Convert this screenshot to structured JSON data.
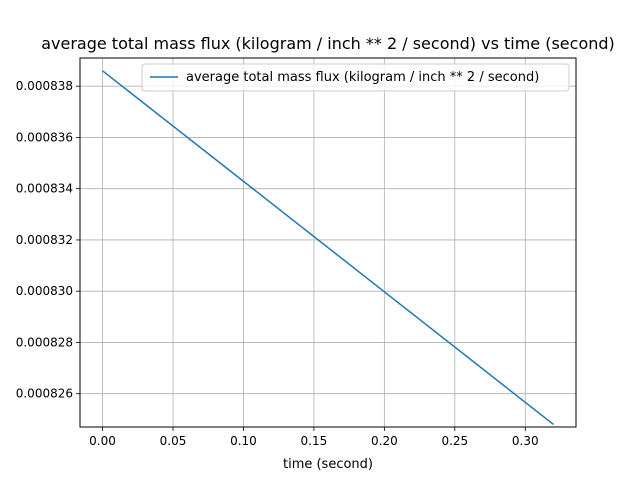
{
  "chart_data": {
    "type": "line",
    "title": "average total mass flux (kilogram / inch ** 2 / second) vs time (second)",
    "xlabel": "time (second)",
    "ylabel": "",
    "xlim": [
      -0.016,
      0.336
    ],
    "ylim": [
      0.0008247,
      0.0008391
    ],
    "x_ticks": [
      0.0,
      0.05,
      0.1,
      0.15,
      0.2,
      0.25,
      0.3
    ],
    "x_tick_labels": [
      "0.00",
      "0.05",
      "0.10",
      "0.15",
      "0.20",
      "0.25",
      "0.30"
    ],
    "y_ticks": [
      0.000826,
      0.000828,
      0.00083,
      0.000832,
      0.000834,
      0.000836,
      0.000838
    ],
    "y_tick_labels": [
      "0.000826",
      "0.000828",
      "0.000830",
      "0.000832",
      "0.000834",
      "0.000836",
      "0.000838"
    ],
    "grid": true,
    "legend_position": "top-right",
    "series": [
      {
        "name": "average total mass flux (kilogram / inch ** 2 / second)",
        "color": "#1f77b4",
        "x": [
          0.0,
          0.32
        ],
        "y": [
          0.0008386,
          0.0008248
        ]
      }
    ]
  }
}
